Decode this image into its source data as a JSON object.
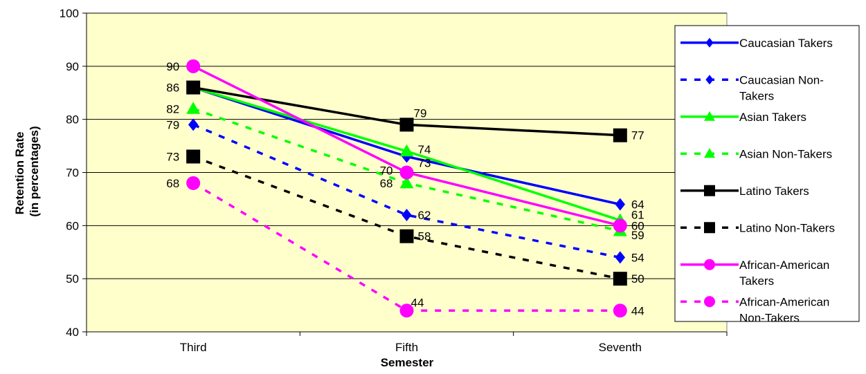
{
  "chart_data": {
    "type": "line",
    "categories": [
      "Third",
      "Fifth",
      "Seventh"
    ],
    "xlabel": "Semester",
    "ylabel_lines": [
      "Retention Rate",
      "(in percentages)"
    ],
    "ylim": [
      40,
      100
    ],
    "yticks": [
      40,
      50,
      60,
      70,
      80,
      90,
      100
    ],
    "grid": true,
    "legend_position": "right",
    "plot_background": "#ffffcc",
    "series": [
      {
        "name": "Caucasian Takers",
        "name_lines": [
          "Caucasian Takers"
        ],
        "values": [
          86,
          73,
          64
        ],
        "labels": [
          null,
          null,
          "64"
        ],
        "color": "#0000ff",
        "dash": "solid",
        "marker": "diamond"
      },
      {
        "name": "Caucasian Non-Takers",
        "name_lines": [
          "Caucasian Non-",
          "Takers"
        ],
        "values": [
          79,
          62,
          54
        ],
        "labels": [
          "79",
          "62",
          "54"
        ],
        "color": "#0000ff",
        "dash": "dashed",
        "marker": "diamond"
      },
      {
        "name": "Asian Takers",
        "name_lines": [
          "Asian Takers"
        ],
        "values": [
          86,
          74,
          61
        ],
        "labels": [
          null,
          "74",
          "61"
        ],
        "color": "#00ff00",
        "dash": "solid",
        "marker": "triangle"
      },
      {
        "name": "Asian Non-Takers",
        "name_lines": [
          "Asian Non-Takers"
        ],
        "values": [
          82,
          68,
          59
        ],
        "labels": [
          "82",
          "68",
          "59"
        ],
        "color": "#00ff00",
        "dash": "dashed",
        "marker": "triangle"
      },
      {
        "name": "Latino Takers",
        "name_lines": [
          "Latino Takers"
        ],
        "values": [
          86,
          79,
          77
        ],
        "labels": [
          "86",
          "79",
          "77"
        ],
        "color": "#000000",
        "dash": "solid",
        "marker": "square"
      },
      {
        "name": "Latino Non-Takers",
        "name_lines": [
          "Latino Non-Takers"
        ],
        "values": [
          73,
          58,
          50
        ],
        "labels": [
          "73",
          "58",
          "50"
        ],
        "color": "#000000",
        "dash": "dashed",
        "marker": "square"
      },
      {
        "name": "African-American Takers",
        "name_lines": [
          "African-American",
          "Takers"
        ],
        "values": [
          90,
          70,
          60
        ],
        "labels": [
          "90",
          "70",
          "60"
        ],
        "color": "#ff00ff",
        "dash": "solid",
        "marker": "circle"
      },
      {
        "name": "African-American Non-Takers",
        "name_lines": [
          "African-American",
          "Non-Takers"
        ],
        "values": [
          68,
          44,
          44
        ],
        "labels": [
          "68",
          "44",
          "44"
        ],
        "color": "#ff00ff",
        "dash": "dashed",
        "marker": "circle"
      }
    ],
    "extra_labels": [
      {
        "series": 0,
        "point": 1,
        "text": "73"
      }
    ]
  }
}
